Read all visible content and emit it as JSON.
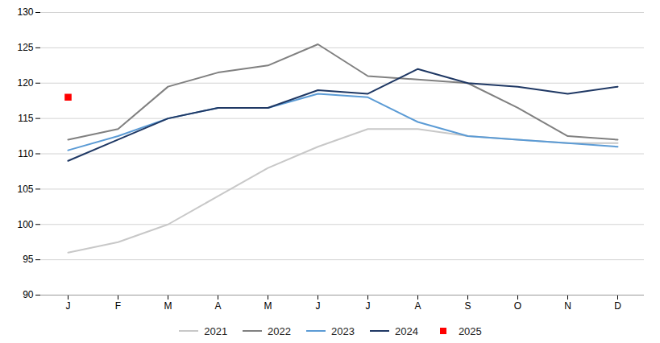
{
  "chart_data": {
    "type": "line",
    "categories": [
      "J",
      "F",
      "M",
      "A",
      "M",
      "J",
      "J",
      "A",
      "S",
      "O",
      "N",
      "D"
    ],
    "series": [
      {
        "name": "2021",
        "color": "#c8c8c8",
        "values": [
          96.0,
          97.5,
          100.0,
          104.0,
          108.0,
          111.0,
          113.5,
          113.5,
          112.5,
          112.0,
          111.5,
          111.5
        ]
      },
      {
        "name": "2022",
        "color": "#808080",
        "values": [
          112.0,
          113.5,
          119.5,
          121.5,
          122.5,
          125.5,
          121.0,
          120.5,
          120.0,
          116.5,
          112.5,
          112.0
        ]
      },
      {
        "name": "2023",
        "color": "#5b9bd5",
        "values": [
          110.5,
          112.5,
          115.0,
          116.5,
          116.5,
          118.5,
          118.0,
          114.5,
          112.5,
          112.0,
          111.5,
          111.0
        ]
      },
      {
        "name": "2024",
        "color": "#1f3864",
        "values": [
          109.0,
          112.0,
          115.0,
          116.5,
          116.5,
          119.0,
          118.5,
          122.0,
          120.0,
          119.5,
          118.5,
          119.5
        ]
      },
      {
        "name": "2025",
        "color": "#ff0000",
        "type": "scatter",
        "marker": "square",
        "values": [
          118.0,
          null,
          null,
          null,
          null,
          null,
          null,
          null,
          null,
          null,
          null,
          null
        ]
      }
    ],
    "ylim": [
      90,
      130
    ],
    "yticks": [
      90,
      95,
      100,
      105,
      110,
      115,
      120,
      125,
      130
    ],
    "grid": true,
    "legend": "bottom"
  }
}
